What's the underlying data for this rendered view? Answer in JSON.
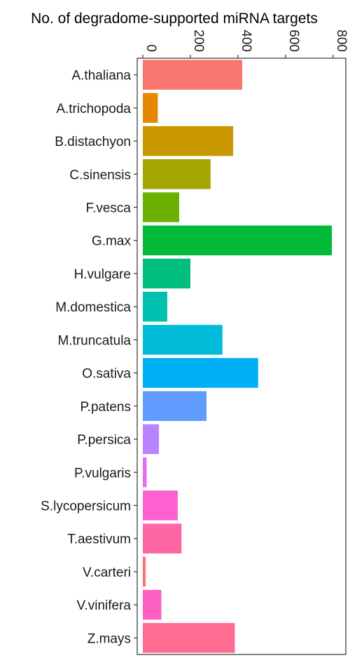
{
  "chart_data": {
    "type": "bar",
    "orientation": "horizontal",
    "title": "",
    "xlabel": "No. of degradome-supported miRNA targets",
    "ylabel": "",
    "xlim": [
      0,
      830
    ],
    "xticks": [
      0,
      200,
      400,
      600,
      800
    ],
    "xtick_labels": [
      "0",
      "200",
      "400",
      "600",
      "800"
    ],
    "grid": false,
    "legend": "none",
    "categories": [
      "A.thaliana",
      "A.trichopoda",
      "B.distachyon",
      "C.sinensis",
      "F.vesca",
      "G.max",
      "H.vulgare",
      "M.domestica",
      "M.truncatula",
      "O.sativa",
      "P.patens",
      "P.persica",
      "P.vulgaris",
      "S.lycopersicum",
      "T.aestivum",
      "V.carteri",
      "V.vinifera",
      "Z.mays"
    ],
    "values": [
      418,
      63,
      380,
      285,
      153,
      795,
      200,
      103,
      335,
      485,
      268,
      68,
      16,
      147,
      163,
      12,
      78,
      387
    ],
    "colors": [
      "#F8766D",
      "#E58700",
      "#C99800",
      "#A3A500",
      "#6BB100",
      "#00BA38",
      "#00BF7D",
      "#00C0AF",
      "#00BCD8",
      "#00B0F6",
      "#619CFF",
      "#B983FF",
      "#E76BF3",
      "#FD61D1",
      "#FF67A4",
      "#F8766D",
      "#FF61C3",
      "#FF6C91"
    ]
  }
}
